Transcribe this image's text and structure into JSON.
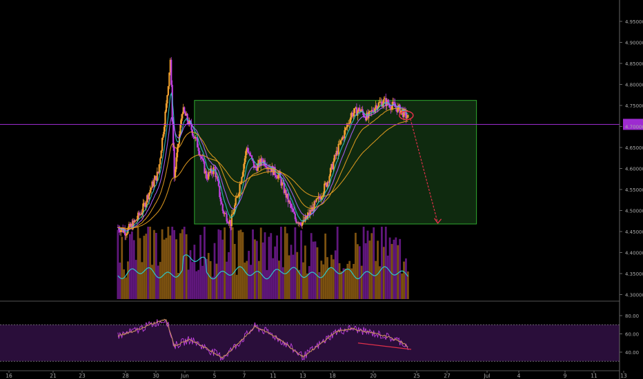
{
  "chart_data": {
    "type": "candlestick",
    "colors": {
      "background": "#000000",
      "candle_up": "#f0a030",
      "candle_down": "#c040e0",
      "ema_fast": "#2ec9c9",
      "ema_mid": "#b060ff",
      "ema_slow": "#e8a020",
      "range_box_fill": "#0f2a0f",
      "range_box_border": "#2eaa2e",
      "support_line": "#9d2bd0",
      "volume_up": "#8a5a12",
      "volume_down": "#6a1a8a",
      "rsi_line": "#c99060",
      "rsi_band": "#2a0e3a",
      "forecast_arrow": "#e0304a",
      "price_tag": "#9d2bd0",
      "axis_text": "#aaaaaa"
    },
    "price_axis": {
      "ylim": [
        4.275,
        4.975
      ],
      "ticks": [
        "4.95000",
        "4.90000",
        "4.85000",
        "4.80000",
        "4.75000",
        "4.70000",
        "4.65000",
        "4.60000",
        "4.55000",
        "4.50000",
        "4.45000",
        "4.40000",
        "4.35000",
        "4.30000"
      ]
    },
    "x_axis": {
      "labels": [
        "16",
        "21",
        "23",
        "28",
        "30",
        "Jun",
        "5",
        "7",
        "11",
        "13",
        "18",
        "20",
        "25",
        "27",
        "Jul",
        "4",
        "9",
        "11",
        "13"
      ]
    },
    "key_closes": [
      {
        "x": 16,
        "close": 4.46
      },
      {
        "x": 17,
        "close": 4.45
      },
      {
        "x": 18,
        "close": 4.47
      },
      {
        "x": 19,
        "close": 4.5
      },
      {
        "x": 20,
        "close": 4.55
      },
      {
        "x": 21,
        "close": 4.59
      },
      {
        "x": 22,
        "close": 4.75
      },
      {
        "x": 22.5,
        "close": 4.86
      },
      {
        "x": 23,
        "close": 4.58
      },
      {
        "x": 24,
        "close": 4.74
      },
      {
        "x": 25,
        "close": 4.7
      },
      {
        "x": 26,
        "close": 4.65
      },
      {
        "x": 27,
        "close": 4.58
      },
      {
        "x": 28,
        "close": 4.6
      },
      {
        "x": 29,
        "close": 4.5
      },
      {
        "x": 30,
        "close": 4.47
      },
      {
        "x": 31,
        "close": 4.55
      },
      {
        "x": 32,
        "close": 4.65
      },
      {
        "x": 33,
        "close": 4.6
      },
      {
        "x": 34,
        "close": 4.62
      },
      {
        "x": 35,
        "close": 4.6
      },
      {
        "x": 36,
        "close": 4.58
      },
      {
        "x": 37,
        "close": 4.53
      },
      {
        "x": 38,
        "close": 4.48
      },
      {
        "x": 39,
        "close": 4.47
      },
      {
        "x": 40,
        "close": 4.5
      },
      {
        "x": 41,
        "close": 4.53
      },
      {
        "x": 42,
        "close": 4.57
      },
      {
        "x": 43,
        "close": 4.63
      },
      {
        "x": 44,
        "close": 4.68
      },
      {
        "x": 45,
        "close": 4.73
      },
      {
        "x": 46,
        "close": 4.74
      },
      {
        "x": 47,
        "close": 4.72
      },
      {
        "x": 48,
        "close": 4.75
      },
      {
        "x": 49,
        "close": 4.76
      },
      {
        "x": 50,
        "close": 4.75
      },
      {
        "x": 51,
        "close": 4.74
      },
      {
        "x": 52,
        "close": 4.72
      }
    ],
    "range_box": {
      "x_start": 25.5,
      "x_end": 60.5,
      "top": 4.762,
      "bottom": 4.468
    },
    "support_line": 4.705,
    "forecast_arrow": {
      "from": {
        "x": 52.3,
        "y": 4.718
      },
      "to": {
        "x": 55.7,
        "y": 4.47
      }
    },
    "rsi": {
      "ylim": [
        20,
        100
      ],
      "ticks": [
        "80.00",
        "60.00",
        "40.00"
      ],
      "upper_band": 70,
      "lower_band": 30,
      "key_values": [
        {
          "x": 16,
          "value": 58
        },
        {
          "x": 18,
          "value": 63
        },
        {
          "x": 20,
          "value": 70
        },
        {
          "x": 22,
          "value": 76
        },
        {
          "x": 23,
          "value": 47
        },
        {
          "x": 25,
          "value": 54
        },
        {
          "x": 27,
          "value": 44
        },
        {
          "x": 29,
          "value": 34
        },
        {
          "x": 31,
          "value": 50
        },
        {
          "x": 33,
          "value": 68
        },
        {
          "x": 35,
          "value": 60
        },
        {
          "x": 37,
          "value": 48
        },
        {
          "x": 39,
          "value": 35
        },
        {
          "x": 41,
          "value": 48
        },
        {
          "x": 43,
          "value": 62
        },
        {
          "x": 45,
          "value": 66
        },
        {
          "x": 47,
          "value": 62
        },
        {
          "x": 49,
          "value": 58
        },
        {
          "x": 51,
          "value": 52
        },
        {
          "x": 52,
          "value": 46
        }
      ]
    }
  }
}
